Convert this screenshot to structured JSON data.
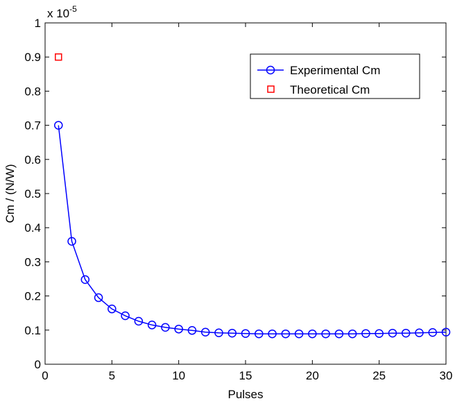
{
  "chart_data": {
    "type": "line",
    "xlabel": "Pulses",
    "ylabel": "Cm / (N/W)",
    "y_exponent": "x 10",
    "y_exponent_power": "-5",
    "xlim": [
      0,
      30
    ],
    "ylim": [
      0,
      1
    ],
    "xticks": [
      0,
      5,
      10,
      15,
      20,
      25,
      30
    ],
    "yticks": [
      0,
      0.1,
      0.2,
      0.3,
      0.4,
      0.5,
      0.6,
      0.7,
      0.8,
      0.9,
      1
    ],
    "ytick_labels": [
      "0",
      "0.1",
      "0.2",
      "0.3",
      "0.4",
      "0.5",
      "0.6",
      "0.7",
      "0.8",
      "0.9",
      "1"
    ],
    "grid": false,
    "legend_position": "top-right",
    "series": [
      {
        "name": "Experimental Cm",
        "color": "#0000ff",
        "marker": "circle",
        "line": true,
        "x": [
          1,
          2,
          3,
          4,
          5,
          6,
          7,
          8,
          9,
          10,
          11,
          12,
          13,
          14,
          15,
          16,
          17,
          18,
          19,
          20,
          21,
          22,
          23,
          24,
          25,
          26,
          27,
          28,
          29,
          30
        ],
        "y": [
          0.7,
          0.36,
          0.248,
          0.195,
          0.162,
          0.142,
          0.126,
          0.115,
          0.108,
          0.103,
          0.099,
          0.094,
          0.092,
          0.091,
          0.09,
          0.089,
          0.089,
          0.089,
          0.089,
          0.089,
          0.089,
          0.089,
          0.089,
          0.09,
          0.09,
          0.091,
          0.091,
          0.092,
          0.093,
          0.094
        ]
      },
      {
        "name": "Theoretical Cm",
        "color": "#ff0000",
        "marker": "square",
        "line": false,
        "x": [
          1
        ],
        "y": [
          0.9
        ]
      }
    ]
  }
}
